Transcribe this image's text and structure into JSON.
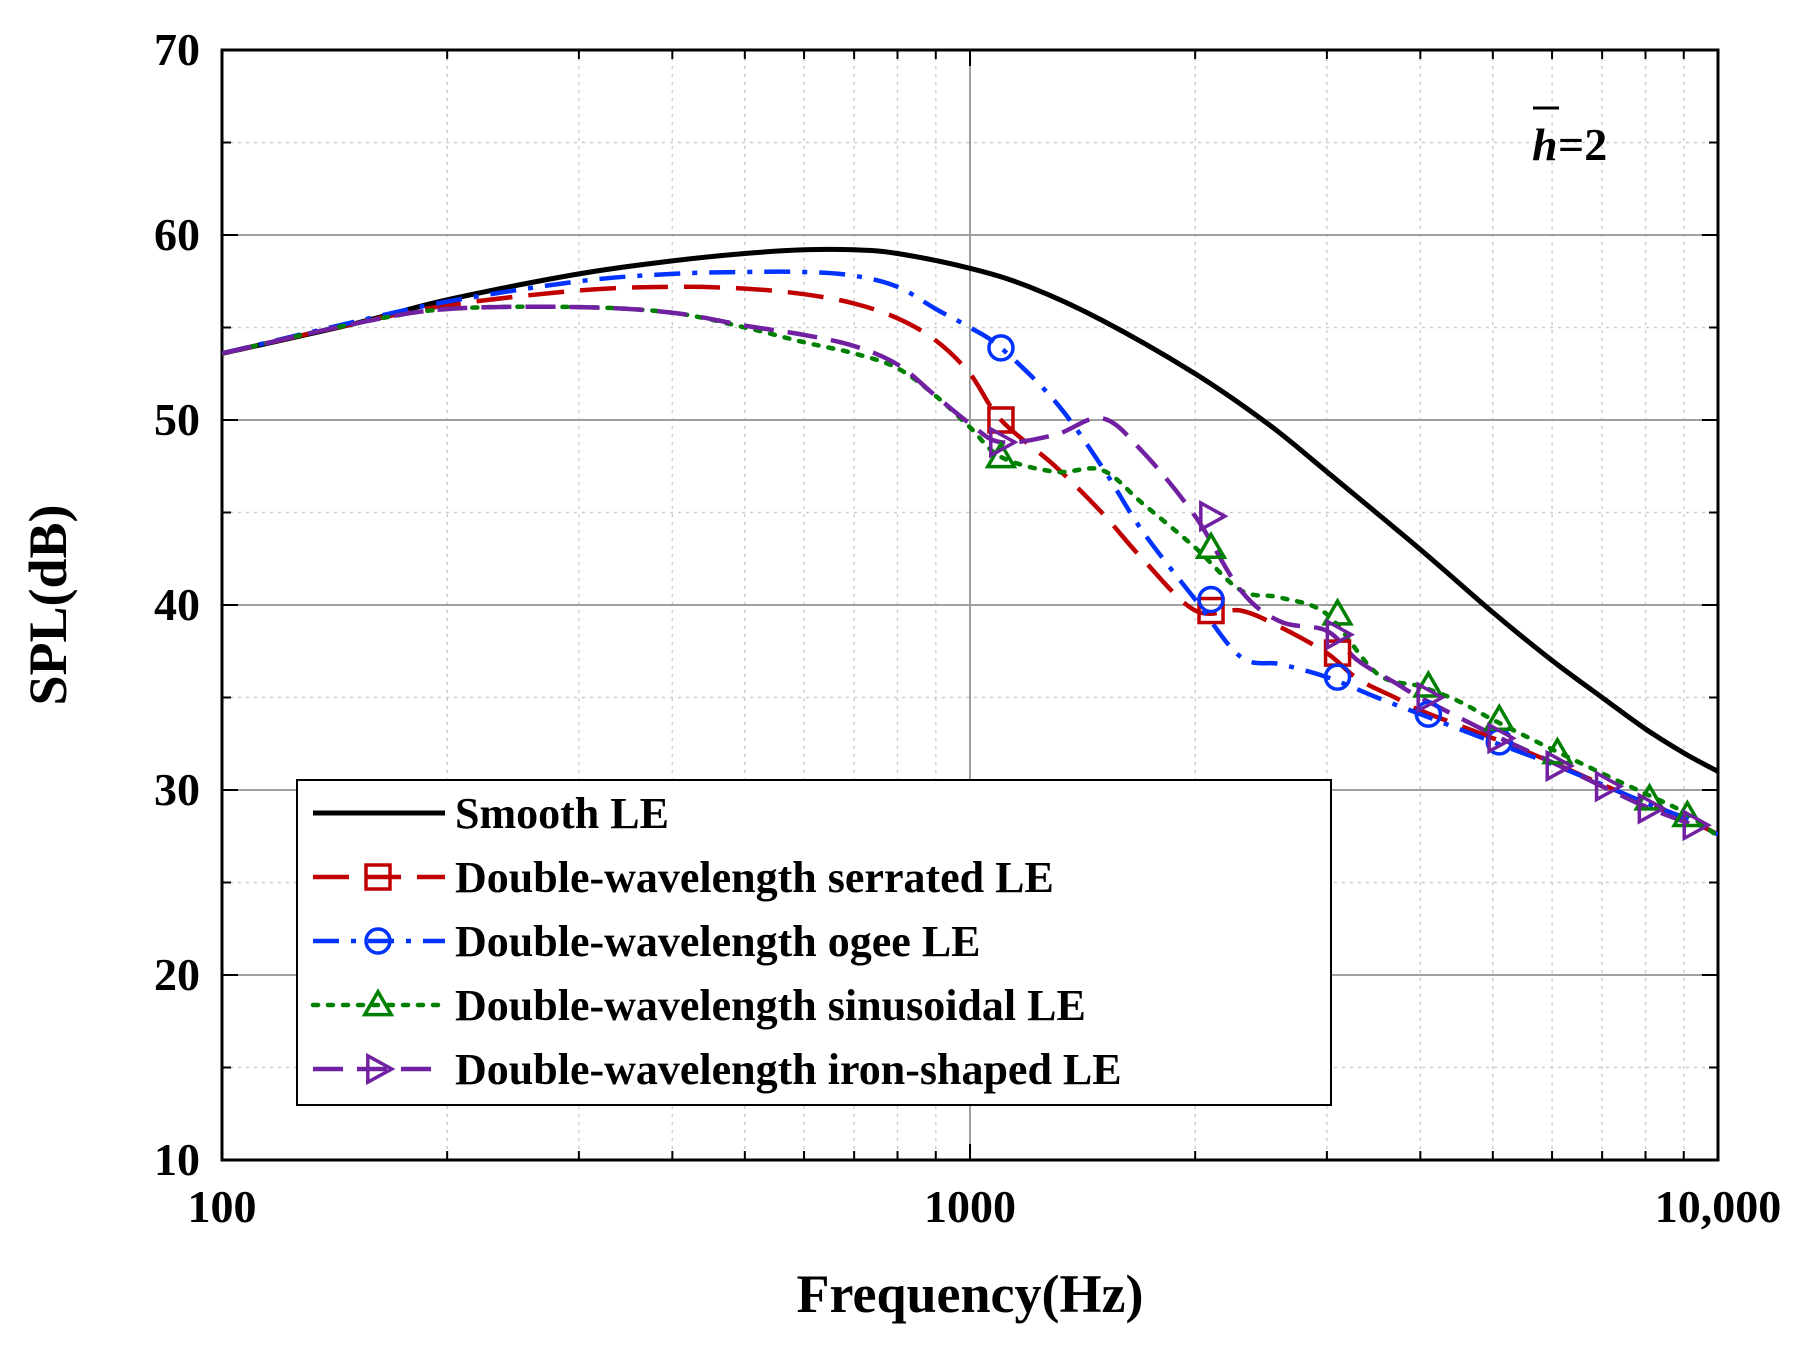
{
  "chart_data": {
    "type": "line",
    "title": "",
    "xlabel": "Frequency(Hz)",
    "ylabel": "SPL(dB)",
    "x_scale": "log",
    "xlim": [
      100,
      10000
    ],
    "ylim": [
      10,
      70
    ],
    "x_ticks": [
      {
        "value": 100,
        "label": "100"
      },
      {
        "value": 1000,
        "label": "1000"
      },
      {
        "value": 10000,
        "label": "10,000"
      }
    ],
    "y_ticks": [
      {
        "value": 10,
        "label": "10"
      },
      {
        "value": 20,
        "label": "20"
      },
      {
        "value": 30,
        "label": "30"
      },
      {
        "value": 40,
        "label": "40"
      },
      {
        "value": 50,
        "label": "50"
      },
      {
        "value": 60,
        "label": "60"
      },
      {
        "value": 70,
        "label": "70"
      }
    ],
    "grid": true,
    "legend_position": "bottom-left",
    "annotation": {
      "symbol": "h",
      "text": "=2"
    },
    "series": [
      {
        "name": "Smooth LE",
        "color": "#000000",
        "dash": "solid",
        "marker": "none",
        "x": [
          100,
          150,
          200,
          300,
          400,
          500,
          600,
          700,
          800,
          1000,
          1200,
          1500,
          2000,
          2500,
          3000,
          4000,
          5000,
          6000,
          7000,
          8000,
          9000,
          10000
        ],
        "y": [
          53.6,
          55.2,
          56.5,
          57.9,
          58.6,
          59.0,
          59.2,
          59.2,
          59.0,
          58.2,
          57.2,
          55.4,
          52.5,
          49.8,
          47.2,
          43.0,
          39.6,
          37.0,
          35.0,
          33.3,
          32.0,
          31.0
        ],
        "markers_x": [],
        "markers_y": []
      },
      {
        "name": "Double-wavelength serrated LE",
        "color": "#c00000",
        "dash": "long-dash",
        "marker": "square",
        "x": [
          100,
          150,
          200,
          300,
          400,
          500,
          600,
          700,
          800,
          900,
          1000,
          1100,
          1300,
          1500,
          1700,
          2000,
          2300,
          2600,
          3000,
          3300,
          3700,
          4000,
          5000,
          6000,
          7000,
          8000,
          9000,
          10000
        ],
        "y": [
          53.6,
          55.2,
          56.2,
          57.0,
          57.2,
          57.1,
          56.8,
          56.3,
          55.5,
          54.3,
          52.5,
          50.0,
          47.5,
          45.0,
          42.5,
          39.7,
          39.7,
          38.8,
          37.4,
          36.0,
          35.0,
          34.3,
          32.8,
          31.5,
          30.3,
          29.3,
          28.5,
          27.6
        ],
        "markers_x": [
          1100,
          2100,
          3100
        ],
        "markers_y": [
          50.0,
          39.7,
          37.4
        ]
      },
      {
        "name": "Double-wavelength ogee LE",
        "color": "#0033ff",
        "dash": "dash-dot",
        "marker": "circle",
        "x": [
          100,
          150,
          200,
          300,
          400,
          500,
          600,
          700,
          800,
          900,
          1000,
          1100,
          1300,
          1500,
          1700,
          2000,
          2300,
          2600,
          3000,
          3500,
          4000,
          5000,
          6000,
          7000,
          8000,
          9000,
          10000
        ],
        "y": [
          53.6,
          55.3,
          56.4,
          57.5,
          57.9,
          58.0,
          58.0,
          57.8,
          57.2,
          56.0,
          55.0,
          53.9,
          51.0,
          47.5,
          44.0,
          40.3,
          37.2,
          36.8,
          36.1,
          35.0,
          34.1,
          32.6,
          31.4,
          30.3,
          29.3,
          28.5,
          27.6
        ],
        "markers_x": [
          1100,
          2100,
          3100,
          4100,
          5100
        ],
        "markers_y": [
          53.9,
          40.3,
          36.1,
          34.1,
          32.6
        ]
      },
      {
        "name": "Double-wavelength sinusoidal LE",
        "color": "#008000",
        "dash": "dotted",
        "marker": "triangle-up",
        "x": [
          100,
          150,
          200,
          300,
          400,
          500,
          600,
          700,
          800,
          900,
          1000,
          1100,
          1300,
          1500,
          1700,
          2000,
          2300,
          2600,
          3000,
          3500,
          4000,
          4500,
          5000,
          6000,
          7000,
          8000,
          9000,
          10000
        ],
        "y": [
          53.6,
          55.2,
          56.0,
          56.1,
          55.8,
          55.0,
          54.2,
          53.6,
          52.8,
          51.3,
          49.6,
          48.0,
          47.2,
          47.3,
          45.5,
          43.1,
          40.8,
          40.4,
          39.5,
          36.3,
          35.6,
          34.8,
          33.8,
          32.2,
          30.9,
          29.8,
          28.8,
          27.5
        ],
        "markers_x": [
          1100,
          2100,
          3100,
          4100,
          5100,
          6100,
          8100,
          9100
        ],
        "markers_y": [
          48.0,
          43.1,
          39.5,
          35.6,
          33.8,
          32.0,
          29.5,
          28.6
        ]
      },
      {
        "name": "Double-wavelength iron-shaped LE",
        "color": "#7020a0",
        "dash": "dash-dash",
        "marker": "triangle-right",
        "x": [
          100,
          150,
          200,
          300,
          400,
          500,
          600,
          700,
          800,
          900,
          1000,
          1100,
          1300,
          1500,
          1700,
          2000,
          2300,
          2600,
          3000,
          3300,
          3700,
          4000,
          5000,
          6000,
          7000,
          8000,
          9000,
          9500
        ],
        "y": [
          53.6,
          55.2,
          56.0,
          56.1,
          55.8,
          55.1,
          54.6,
          54.0,
          53.0,
          51.3,
          49.8,
          48.8,
          49.2,
          50.1,
          48.3,
          44.8,
          40.8,
          39.1,
          38.6,
          37.0,
          35.8,
          35.0,
          33.0,
          31.5,
          30.2,
          29.1,
          28.3,
          28.0
        ],
        "markers_x": [
          1100,
          2100,
          3100,
          4100,
          5100,
          6100,
          7100,
          8100,
          9300
        ],
        "markers_y": [
          48.8,
          44.8,
          38.4,
          35.0,
          32.8,
          31.3,
          30.2,
          29.0,
          28.1
        ]
      }
    ]
  }
}
